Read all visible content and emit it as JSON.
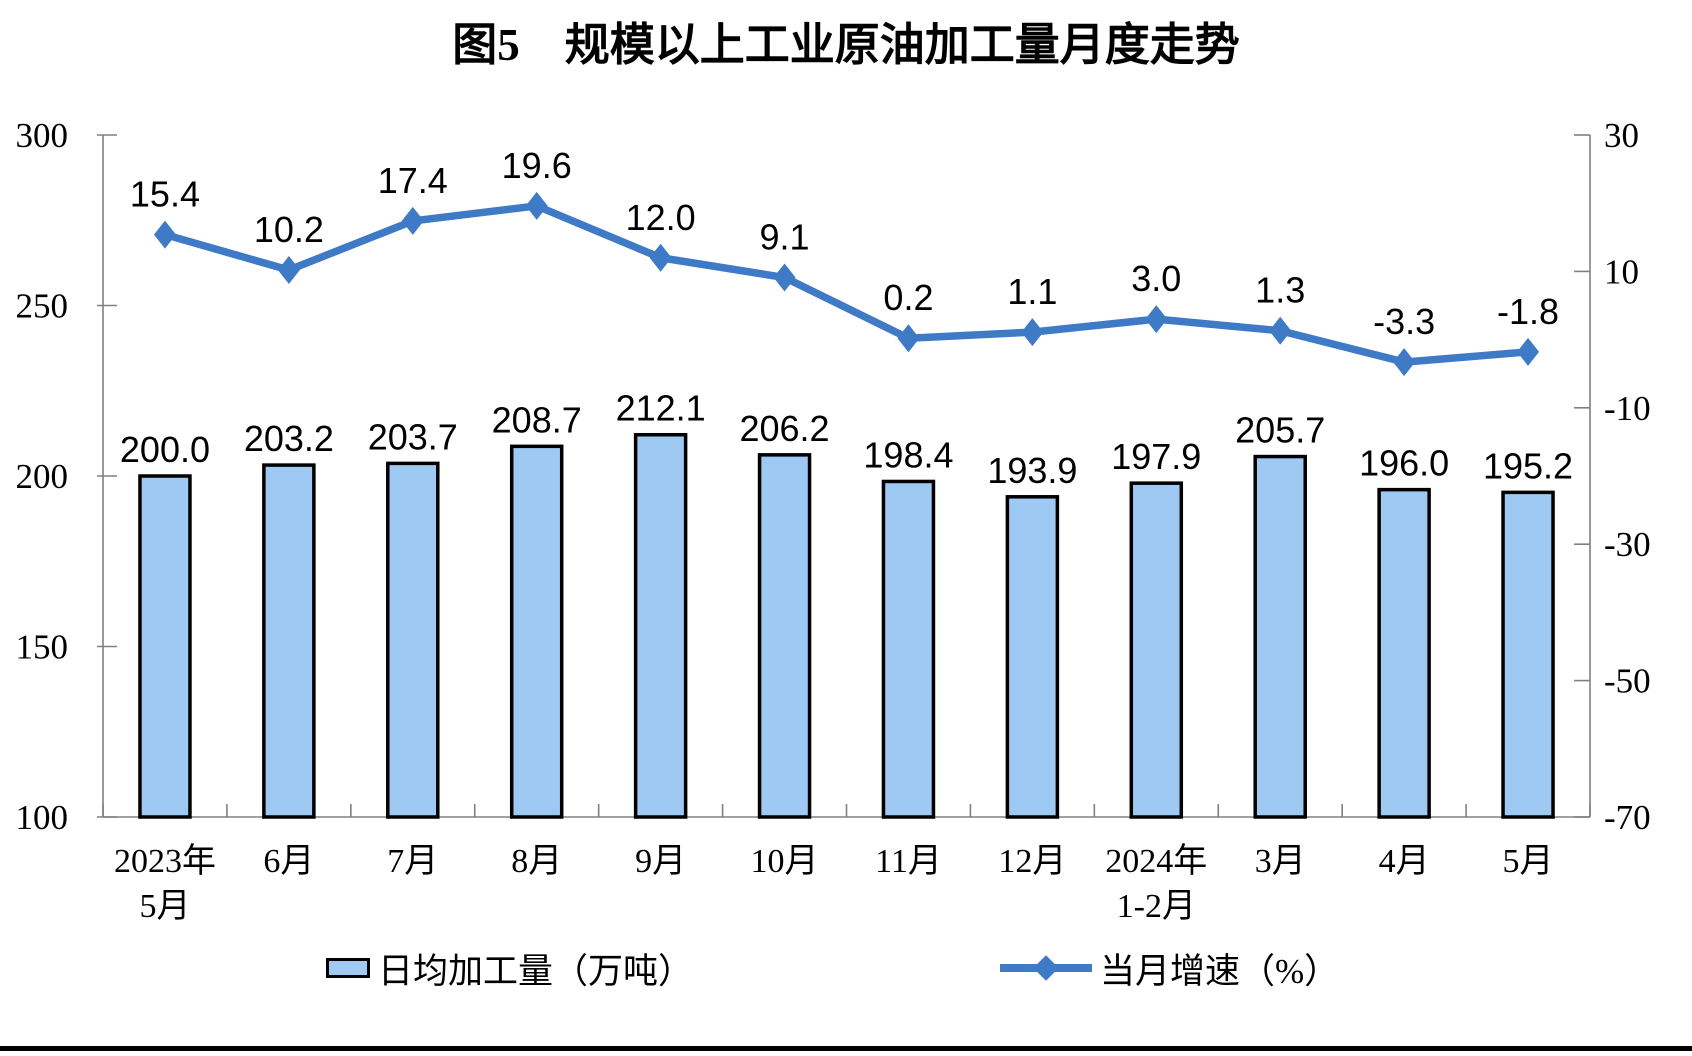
{
  "chart_data": {
    "type": "combo",
    "title": "图5　规模以上工业原油加工量月度走势",
    "categories": [
      [
        "2023年",
        "5月"
      ],
      "6月",
      "7月",
      "8月",
      "9月",
      "10月",
      "11月",
      "12月",
      [
        "2024年",
        "1-2月"
      ],
      "3月",
      "4月",
      "5月"
    ],
    "series": [
      {
        "name": "日均加工量（万吨）",
        "type": "bar",
        "axis": "left",
        "color": "#9DC9F2",
        "border_color": "#000000",
        "values": [
          200.0,
          203.2,
          203.7,
          208.7,
          212.1,
          206.2,
          198.4,
          193.9,
          197.9,
          205.7,
          196.0,
          195.2
        ]
      },
      {
        "name": "当月增速（%）",
        "type": "line",
        "axis": "right",
        "color": "#3E7AC6",
        "marker": "diamond",
        "values": [
          15.4,
          10.2,
          17.4,
          19.6,
          12.0,
          9.1,
          0.2,
          1.1,
          3.0,
          1.3,
          -3.3,
          -1.8
        ]
      }
    ],
    "left_axis": {
      "min": 100,
      "max": 300,
      "ticks": [
        300,
        250,
        200,
        150,
        100
      ]
    },
    "right_axis": {
      "min": -70,
      "max": 30,
      "ticks": [
        30,
        10,
        -10,
        -30,
        -50,
        -70
      ]
    },
    "grid": false,
    "legend_position": "bottom",
    "axis_color": "#808080",
    "text_color": "#000000",
    "value_label_decimals": 1
  }
}
